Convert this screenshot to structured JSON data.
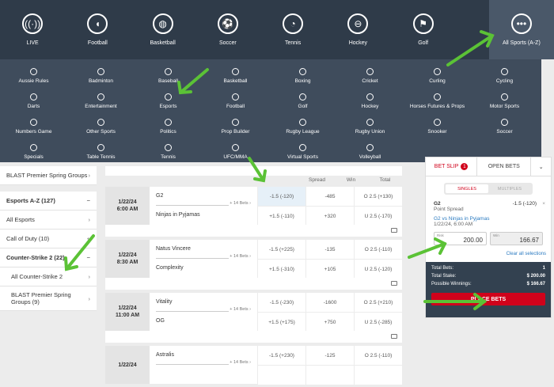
{
  "topnav": [
    {
      "label": "LIVE",
      "icon": "live-icon"
    },
    {
      "label": "Football",
      "icon": "football-icon"
    },
    {
      "label": "Basketball",
      "icon": "basketball-icon"
    },
    {
      "label": "Soccer",
      "icon": "soccer-icon"
    },
    {
      "label": "Tennis",
      "icon": "tennis-icon"
    },
    {
      "label": "Hockey",
      "icon": "hockey-icon"
    },
    {
      "label": "Golf",
      "icon": "golf-icon"
    },
    {
      "label": "All Sports (A-Z)",
      "icon": "more-icon"
    }
  ],
  "sports": [
    "Aussie Rules",
    "Badminton",
    "Baseball",
    "Basketball",
    "Boxing",
    "Cricket",
    "Curling",
    "Cycling",
    "Darts",
    "Entertainment",
    "Esports",
    "Football",
    "Golf",
    "Hockey",
    "Horses Futures & Props",
    "Motor Sports",
    "Numbers Game",
    "Other Sports",
    "Politics",
    "Prop Builder",
    "Rugby League",
    "Rugby Union",
    "Snooker",
    "Soccer",
    "Specials",
    "Table Tennis",
    "Tennis",
    "UFC/MMA",
    "Virtual Sports",
    "Volleyball"
  ],
  "sidebar": {
    "top": "BLAST Premier Spring Groups",
    "section": "Esports A-Z (127)",
    "items": [
      "All Esports",
      "Call of Duty (10)"
    ],
    "sub": "Counter-Strike 2 (22)",
    "subitems": [
      "All Counter-Strike 2",
      "BLAST Premier Spring Groups (9)"
    ]
  },
  "columns": [
    "Spread",
    "Win",
    "Total"
  ],
  "events": [
    {
      "date": "1/22/24",
      "time": "6:00 AM",
      "t1": "G2",
      "t2": "Ninjas in Pyjamas",
      "more": "+ 14 Bets",
      "odds": [
        "-1.5 (-120)",
        "-485",
        "O 2.5 (+130)",
        "+1.5 (-110)",
        "+320",
        "U 2.5 (-170)"
      ]
    },
    {
      "date": "1/22/24",
      "time": "8:30 AM",
      "t1": "Natus Vincere",
      "t2": "Complexity",
      "more": "+ 14 Bets",
      "odds": [
        "-1.5 (+225)",
        "-135",
        "O 2.5 (-110)",
        "+1.5 (-310)",
        "+105",
        "U 2.5 (-120)"
      ]
    },
    {
      "date": "1/22/24",
      "time": "11:00 AM",
      "t1": "Vitality",
      "t2": "OG",
      "more": "+ 14 Bets",
      "odds": [
        "-1.5 (-230)",
        "-1600",
        "O 2.5 (+210)",
        "+1.5 (+175)",
        "+750",
        "U 2.5 (-285)"
      ]
    },
    {
      "date": "1/22/24",
      "time": "",
      "t1": "Astralis",
      "t2": "",
      "more": "+ 14 Bets",
      "odds": [
        "-1.5 (+230)",
        "-125",
        "O 2.5 (-110)",
        "",
        "",
        ""
      ]
    }
  ],
  "betslip": {
    "tab": "BET SLIP",
    "count": "1",
    "open": "OPEN BETS",
    "singles": "SINGLES",
    "multiples": "MULTIPLES",
    "team": "G2",
    "market": "Point Spread",
    "selection": "-1.5 (-120)",
    "match": "G2 vs Ninjas in Pyjamas",
    "datetime": "1/22/24, 6:00 AM",
    "risk_label": "Risk",
    "risk": "200.00",
    "win_label": "Win",
    "win": "166.67",
    "clear": "Clear all selections",
    "total_bets_label": "Total Bets:",
    "total_bets": "1",
    "total_stake_label": "Total Stake:",
    "total_stake": "$ 200.00",
    "possible_label": "Possible Winnings:",
    "possible": "$ 166.67",
    "place": "PLACE BETS"
  },
  "colors": {
    "accent": "#d0021b",
    "nav": "#2f3b49",
    "panel": "#3f4c5c",
    "annotation": "#5bc236"
  }
}
